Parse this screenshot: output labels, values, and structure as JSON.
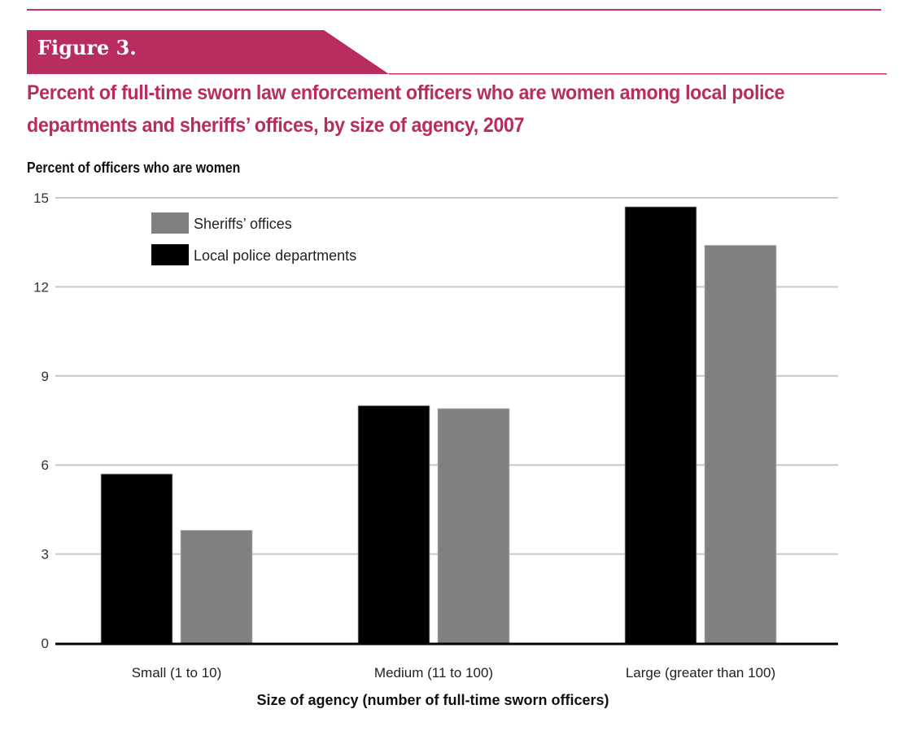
{
  "figure": {
    "label": "Figure 3.",
    "accent_color": "#b82c5f"
  },
  "chart_data": {
    "type": "bar",
    "title": "Percent of full-time sworn law enforcement officers who are women among local police departments and sheriffs’ offices, by size of agency, 2007",
    "ylabel": "Percent of officers who are women",
    "xlabel": "Size of agency (number of full-time sworn officers)",
    "categories": [
      "Small (1 to 10)",
      "Medium (11 to 100)",
      "Large (greater than 100)"
    ],
    "series": [
      {
        "name": "Local police departments",
        "color": "#000000",
        "values": [
          5.7,
          8.0,
          14.7
        ]
      },
      {
        "name": "Sheriffs’ offices",
        "color": "#808080",
        "values": [
          3.8,
          7.9,
          13.4
        ]
      }
    ],
    "legend_order": [
      "Sheriffs’ offices",
      "Local police departments"
    ],
    "legend_colors": [
      "#808080",
      "#000000"
    ],
    "ylim": [
      0,
      15
    ],
    "yticks": [
      "0",
      "3",
      "6",
      "9",
      "12",
      "15"
    ],
    "ytick_values": [
      0,
      3,
      6,
      9,
      12,
      15
    ],
    "grid": true,
    "legend_position": "top-left"
  }
}
